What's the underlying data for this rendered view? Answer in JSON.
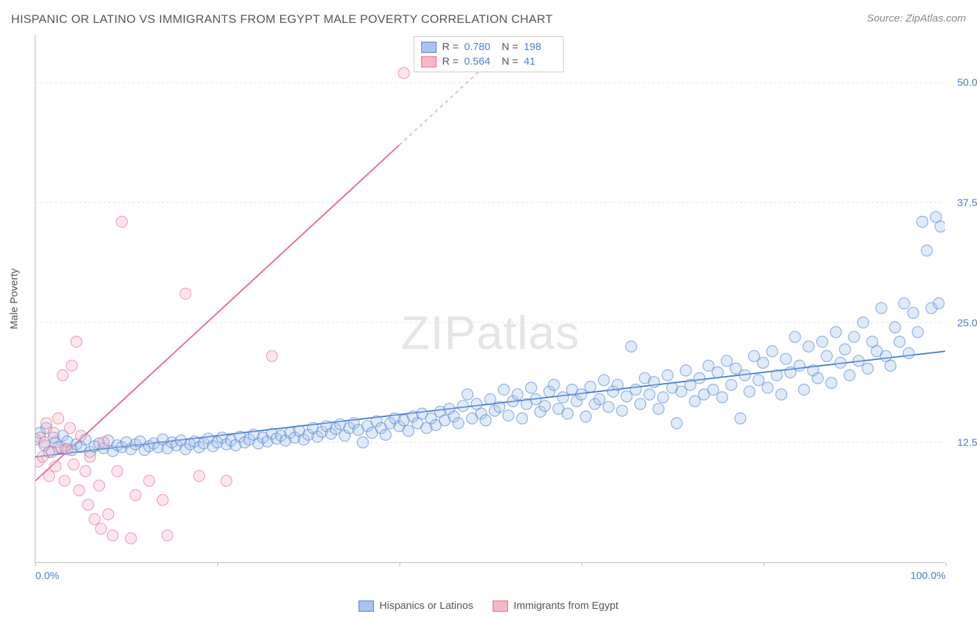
{
  "title": "HISPANIC OR LATINO VS IMMIGRANTS FROM EGYPT MALE POVERTY CORRELATION CHART",
  "source": "Source: ZipAtlas.com",
  "watermark": {
    "part1": "ZIP",
    "part2": "atlas"
  },
  "y_axis_title": "Male Poverty",
  "chart": {
    "type": "scatter",
    "xlim": [
      0,
      100
    ],
    "ylim": [
      0,
      55
    ],
    "x_ticks": [
      0,
      20,
      40,
      60,
      80,
      100
    ],
    "x_tick_labels": {
      "0": "0.0%",
      "100": "100.0%"
    },
    "y_ticks": [
      12.5,
      25.0,
      37.5,
      50.0
    ],
    "y_tick_labels": [
      "12.5%",
      "25.0%",
      "37.5%",
      "50.0%"
    ],
    "marker_radius": 8,
    "marker_fill_opacity": 0.35,
    "marker_stroke_width": 1.2,
    "line_width": 2,
    "background_color": "#ffffff",
    "grid_color": "#dddddd",
    "axis_color": "#bbbbbb",
    "label_color": "#4a7fd4",
    "series": [
      {
        "name": "Hispanics or Latinos",
        "color_stroke": "#4a7fd4",
        "color_fill": "#a7c5ee",
        "R": "0.780",
        "N": "198",
        "trend": {
          "x1": 0,
          "y1": 11.0,
          "x2": 100,
          "y2": 22.0,
          "dash_from_x": null
        },
        "points": [
          [
            0,
            12.8
          ],
          [
            0.5,
            13.5
          ],
          [
            1,
            12.2
          ],
          [
            1.2,
            14.0
          ],
          [
            1.5,
            11.5
          ],
          [
            2,
            13.0
          ],
          [
            2.2,
            12.5
          ],
          [
            2.5,
            12.0
          ],
          [
            3,
            13.2
          ],
          [
            3.3,
            11.8
          ],
          [
            3.5,
            12.6
          ],
          [
            4,
            11.7
          ],
          [
            4.5,
            12.3
          ],
          [
            5,
            12.0
          ],
          [
            5.5,
            12.8
          ],
          [
            6,
            11.5
          ],
          [
            6.5,
            12.1
          ],
          [
            7,
            12.4
          ],
          [
            7.5,
            11.9
          ],
          [
            8,
            12.7
          ],
          [
            8.5,
            11.6
          ],
          [
            9,
            12.2
          ],
          [
            9.5,
            12.0
          ],
          [
            10,
            12.5
          ],
          [
            10.5,
            11.8
          ],
          [
            11,
            12.3
          ],
          [
            11.5,
            12.6
          ],
          [
            12,
            11.7
          ],
          [
            12.5,
            12.1
          ],
          [
            13,
            12.4
          ],
          [
            13.5,
            12.0
          ],
          [
            14,
            12.8
          ],
          [
            14.5,
            11.9
          ],
          [
            15,
            12.5
          ],
          [
            15.5,
            12.2
          ],
          [
            16,
            12.7
          ],
          [
            16.5,
            11.8
          ],
          [
            17,
            12.3
          ],
          [
            17.5,
            12.6
          ],
          [
            18,
            12.0
          ],
          [
            18.5,
            12.4
          ],
          [
            19,
            12.9
          ],
          [
            19.5,
            12.1
          ],
          [
            20,
            12.5
          ],
          [
            20.5,
            13.0
          ],
          [
            21,
            12.3
          ],
          [
            21.5,
            12.7
          ],
          [
            22,
            12.2
          ],
          [
            22.5,
            13.1
          ],
          [
            23,
            12.5
          ],
          [
            23.5,
            12.8
          ],
          [
            24,
            13.3
          ],
          [
            24.5,
            12.4
          ],
          [
            25,
            13.0
          ],
          [
            25.5,
            12.6
          ],
          [
            26,
            13.4
          ],
          [
            26.5,
            12.9
          ],
          [
            27,
            13.2
          ],
          [
            27.5,
            12.7
          ],
          [
            28,
            13.5
          ],
          [
            28.5,
            13.0
          ],
          [
            29,
            13.7
          ],
          [
            29.5,
            12.8
          ],
          [
            30,
            13.3
          ],
          [
            30.5,
            14.0
          ],
          [
            31,
            13.1
          ],
          [
            31.5,
            13.6
          ],
          [
            32,
            14.2
          ],
          [
            32.5,
            13.4
          ],
          [
            33,
            13.9
          ],
          [
            33.5,
            14.4
          ],
          [
            34,
            13.2
          ],
          [
            34.5,
            14.0
          ],
          [
            35,
            14.5
          ],
          [
            35.5,
            13.8
          ],
          [
            36,
            12.5
          ],
          [
            36.5,
            14.2
          ],
          [
            37,
            13.5
          ],
          [
            37.5,
            14.7
          ],
          [
            38,
            14.0
          ],
          [
            38.5,
            13.3
          ],
          [
            39,
            14.5
          ],
          [
            39.5,
            15.0
          ],
          [
            40,
            14.2
          ],
          [
            40.5,
            14.8
          ],
          [
            41,
            13.7
          ],
          [
            41.5,
            15.2
          ],
          [
            42,
            14.5
          ],
          [
            42.5,
            15.5
          ],
          [
            43,
            14.0
          ],
          [
            43.5,
            15.0
          ],
          [
            44,
            14.3
          ],
          [
            44.5,
            15.7
          ],
          [
            45,
            14.8
          ],
          [
            45.5,
            16.0
          ],
          [
            46,
            15.2
          ],
          [
            46.5,
            14.5
          ],
          [
            47,
            16.3
          ],
          [
            47.5,
            17.5
          ],
          [
            48,
            15.0
          ],
          [
            48.5,
            16.5
          ],
          [
            49,
            15.5
          ],
          [
            49.5,
            14.8
          ],
          [
            50,
            17.0
          ],
          [
            50.5,
            15.8
          ],
          [
            51,
            16.2
          ],
          [
            51.5,
            18.0
          ],
          [
            52,
            15.3
          ],
          [
            52.5,
            16.8
          ],
          [
            53,
            17.5
          ],
          [
            53.5,
            15.0
          ],
          [
            54,
            16.5
          ],
          [
            54.5,
            18.2
          ],
          [
            55,
            17.0
          ],
          [
            55.5,
            15.7
          ],
          [
            56,
            16.3
          ],
          [
            56.5,
            17.8
          ],
          [
            57,
            18.5
          ],
          [
            57.5,
            16.0
          ],
          [
            58,
            17.2
          ],
          [
            58.5,
            15.5
          ],
          [
            59,
            18.0
          ],
          [
            59.5,
            16.8
          ],
          [
            60,
            17.5
          ],
          [
            60.5,
            15.2
          ],
          [
            61,
            18.3
          ],
          [
            61.5,
            16.5
          ],
          [
            62,
            17.0
          ],
          [
            62.5,
            19.0
          ],
          [
            63,
            16.2
          ],
          [
            63.5,
            17.8
          ],
          [
            64,
            18.5
          ],
          [
            64.5,
            15.8
          ],
          [
            65,
            17.3
          ],
          [
            65.5,
            22.5
          ],
          [
            66,
            18.0
          ],
          [
            66.5,
            16.5
          ],
          [
            67,
            19.2
          ],
          [
            67.5,
            17.5
          ],
          [
            68,
            18.8
          ],
          [
            68.5,
            16.0
          ],
          [
            69,
            17.2
          ],
          [
            69.5,
            19.5
          ],
          [
            70,
            18.2
          ],
          [
            70.5,
            14.5
          ],
          [
            71,
            17.8
          ],
          [
            71.5,
            20.0
          ],
          [
            72,
            18.5
          ],
          [
            72.5,
            16.8
          ],
          [
            73,
            19.2
          ],
          [
            73.5,
            17.5
          ],
          [
            74,
            20.5
          ],
          [
            74.5,
            18.0
          ],
          [
            75,
            19.8
          ],
          [
            75.5,
            17.2
          ],
          [
            76,
            21.0
          ],
          [
            76.5,
            18.5
          ],
          [
            77,
            20.2
          ],
          [
            77.5,
            15.0
          ],
          [
            78,
            19.5
          ],
          [
            78.5,
            17.8
          ],
          [
            79,
            21.5
          ],
          [
            79.5,
            19.0
          ],
          [
            80,
            20.8
          ],
          [
            80.5,
            18.2
          ],
          [
            81,
            22.0
          ],
          [
            81.5,
            19.5
          ],
          [
            82,
            17.5
          ],
          [
            82.5,
            21.2
          ],
          [
            83,
            19.8
          ],
          [
            83.5,
            23.5
          ],
          [
            84,
            20.5
          ],
          [
            84.5,
            18.0
          ],
          [
            85,
            22.5
          ],
          [
            85.5,
            20.0
          ],
          [
            86,
            19.2
          ],
          [
            86.5,
            23.0
          ],
          [
            87,
            21.5
          ],
          [
            87.5,
            18.7
          ],
          [
            88,
            24.0
          ],
          [
            88.5,
            20.8
          ],
          [
            89,
            22.2
          ],
          [
            89.5,
            19.5
          ],
          [
            90,
            23.5
          ],
          [
            90.5,
            21.0
          ],
          [
            91,
            25.0
          ],
          [
            91.5,
            20.2
          ],
          [
            92,
            23.0
          ],
          [
            92.5,
            22.0
          ],
          [
            93,
            26.5
          ],
          [
            93.5,
            21.5
          ],
          [
            94,
            20.5
          ],
          [
            94.5,
            24.5
          ],
          [
            95,
            23.0
          ],
          [
            95.5,
            27.0
          ],
          [
            96,
            21.8
          ],
          [
            96.5,
            26.0
          ],
          [
            97,
            24.0
          ],
          [
            97.5,
            35.5
          ],
          [
            98,
            32.5
          ],
          [
            98.5,
            26.5
          ],
          [
            99,
            36.0
          ],
          [
            99.3,
            27.0
          ],
          [
            99.5,
            35.0
          ]
        ]
      },
      {
        "name": "Immigrants from Egypt",
        "color_stroke": "#e86b8a",
        "color_fill": "#f5b8c7",
        "R": "0.564",
        "N": "41",
        "trend": {
          "x1": 0,
          "y1": 8.5,
          "x2": 52,
          "y2": 54.0,
          "dash_from_x": 40
        },
        "points": [
          [
            0.3,
            10.5
          ],
          [
            0.5,
            13.0
          ],
          [
            0.8,
            11.0
          ],
          [
            1.0,
            12.5
          ],
          [
            1.2,
            14.5
          ],
          [
            1.5,
            9.0
          ],
          [
            1.8,
            11.5
          ],
          [
            2.0,
            13.5
          ],
          [
            2.2,
            10.0
          ],
          [
            2.5,
            15.0
          ],
          [
            2.8,
            12.0
          ],
          [
            3.0,
            19.5
          ],
          [
            3.2,
            8.5
          ],
          [
            3.5,
            11.8
          ],
          [
            3.8,
            14.0
          ],
          [
            4.0,
            20.5
          ],
          [
            4.2,
            10.2
          ],
          [
            4.5,
            23.0
          ],
          [
            4.8,
            7.5
          ],
          [
            5.0,
            13.2
          ],
          [
            5.5,
            9.5
          ],
          [
            5.8,
            6.0
          ],
          [
            6.0,
            11.0
          ],
          [
            6.5,
            4.5
          ],
          [
            7.0,
            8.0
          ],
          [
            7.2,
            3.5
          ],
          [
            7.5,
            12.5
          ],
          [
            8.0,
            5.0
          ],
          [
            8.5,
            2.8
          ],
          [
            9.0,
            9.5
          ],
          [
            9.5,
            35.5
          ],
          [
            10.5,
            2.5
          ],
          [
            11.0,
            7.0
          ],
          [
            12.5,
            8.5
          ],
          [
            14.0,
            6.5
          ],
          [
            14.5,
            2.8
          ],
          [
            16.5,
            28.0
          ],
          [
            18.0,
            9.0
          ],
          [
            21.0,
            8.5
          ],
          [
            26.0,
            21.5
          ],
          [
            40.5,
            51.0
          ]
        ]
      }
    ]
  },
  "legend_bottom": [
    {
      "label": "Hispanics or Latinos",
      "stroke": "#4a7fd4",
      "fill": "#a7c5ee"
    },
    {
      "label": "Immigrants from Egypt",
      "stroke": "#e86b8a",
      "fill": "#f5b8c7"
    }
  ]
}
